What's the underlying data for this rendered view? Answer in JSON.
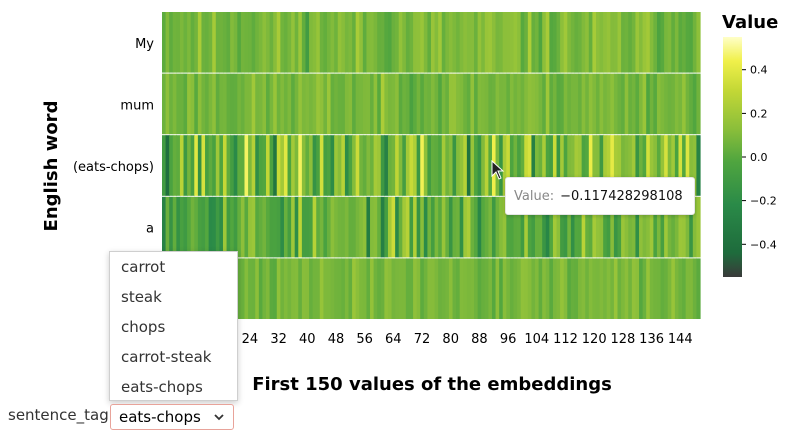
{
  "chart_data": {
    "type": "heatmap",
    "title": "",
    "xlabel": "First 150 values of the embeddings",
    "ylabel": "English word",
    "rows": [
      "My",
      "mum",
      "(eats-chops)",
      "a",
      ""
    ],
    "x_ticks": [
      24,
      32,
      40,
      48,
      56,
      64,
      72,
      80,
      88,
      96,
      104,
      112,
      120,
      128,
      136,
      144
    ],
    "x_range": [
      0,
      149
    ],
    "num_columns": 150,
    "legend": {
      "title": "Value",
      "ticks": [
        "0.4",
        "0.2",
        "0.0",
        "−0.2",
        "−0.4"
      ],
      "tick_values": [
        0.4,
        0.2,
        0.0,
        -0.2,
        -0.4
      ],
      "range": [
        -0.55,
        0.55
      ],
      "colors": [
        "#3a3a3a",
        "#1e6b3c",
        "#2a8a48",
        "#4fa53f",
        "#8cbf3a",
        "#c4d836",
        "#f0f04a",
        "#ffffc8"
      ]
    },
    "values": [
      {
        "row": "My",
        "min": -0.15,
        "max": 0.22,
        "seed": 11
      },
      {
        "row": "mum",
        "min": -0.12,
        "max": 0.18,
        "seed": 23
      },
      {
        "row": "(eats-chops)",
        "min": -0.5,
        "max": 0.55,
        "seed": 37
      },
      {
        "row": "a",
        "min": -0.38,
        "max": 0.32,
        "seed": 53
      },
      {
        "row": "",
        "min": -0.1,
        "max": 0.15,
        "seed": 71
      }
    ]
  },
  "tooltip": {
    "label": "Value:",
    "value": "−0.117428298108"
  },
  "widget": {
    "label": "sentence_tag",
    "selected": "eats-chops",
    "options": [
      "carrot",
      "steak",
      "chops",
      "carrot-steak",
      "eats-chops"
    ]
  }
}
